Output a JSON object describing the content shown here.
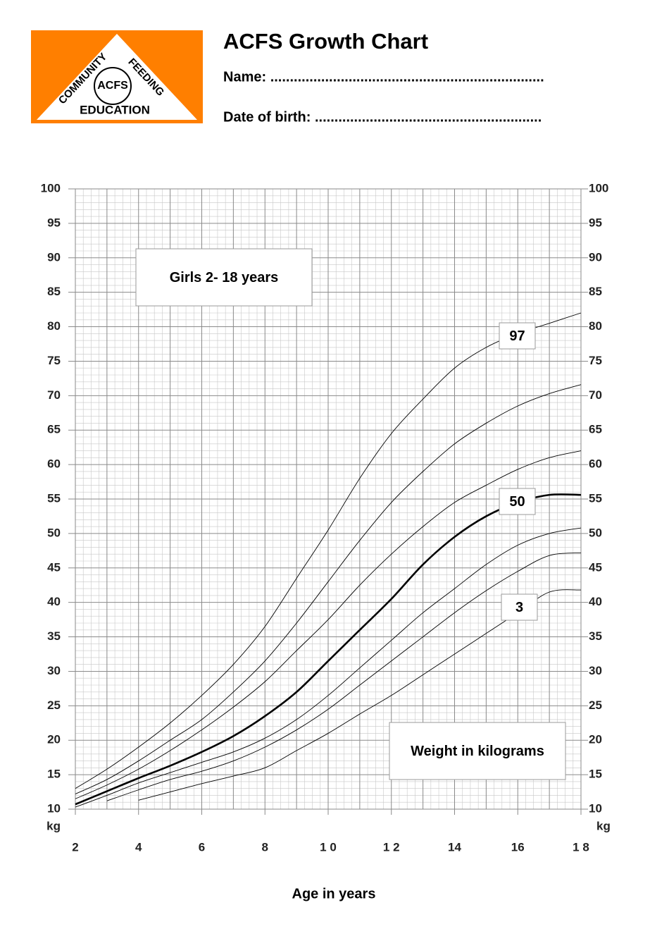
{
  "logo": {
    "top": "COMMUNITY",
    "right": "FEEDING",
    "bottom": "EDUCATION",
    "center": "ACFS"
  },
  "header": {
    "title": "ACFS Growth Chart",
    "name_field": "Name: ......................................................................",
    "dob_field": "Date of birth: .........................................................."
  },
  "chart_data": {
    "type": "line",
    "annotations": [
      "Girls 2- 18 years",
      "Weight in kilograms"
    ],
    "xlabel": "Age in years",
    "y_unit": "kg",
    "x": [
      2,
      3,
      4,
      5,
      6,
      7,
      8,
      9,
      10,
      11,
      12,
      13,
      14,
      15,
      16,
      17,
      18
    ],
    "xlim": [
      2,
      18
    ],
    "xticks": [
      2,
      4,
      6,
      8,
      {
        "value": 10,
        "label": "1 0"
      },
      {
        "value": 12,
        "label": "1 2"
      },
      14,
      16,
      {
        "value": 18,
        "label": "1 8"
      }
    ],
    "ylim": [
      10,
      100
    ],
    "yticks": [
      10,
      15,
      20,
      25,
      30,
      35,
      40,
      45,
      50,
      55,
      60,
      65,
      70,
      75,
      80,
      85,
      90,
      95,
      100
    ],
    "grid": true,
    "series": [
      {
        "name": "97",
        "color": "#000000",
        "linewidth": 0.9,
        "values": [
          13,
          15.8,
          19,
          22.5,
          26.5,
          31,
          36.5,
          43.5,
          50.5,
          58,
          64.5,
          69.5,
          74,
          77,
          79,
          80.5,
          82
        ]
      },
      {
        "name": null,
        "color": "#000000",
        "linewidth": 0.9,
        "values": [
          12.2,
          14.3,
          17,
          20,
          23,
          27,
          31.5,
          37,
          43,
          49,
          54.5,
          59,
          63,
          66,
          68.5,
          70.3,
          71.6
        ]
      },
      {
        "name": null,
        "color": "#000000",
        "linewidth": 0.9,
        "values": [
          11.5,
          13.5,
          15.8,
          18.5,
          21.5,
          24.8,
          28.5,
          33,
          37.5,
          42.5,
          47,
          51,
          54.5,
          57,
          59.3,
          61,
          62
        ]
      },
      {
        "name": "50",
        "color": "#000000",
        "linewidth": 2.6,
        "values": [
          10.7,
          12.6,
          14.5,
          16.3,
          18.3,
          20.6,
          23.5,
          27,
          31.5,
          36,
          40.5,
          45.5,
          49.5,
          52.5,
          54.5,
          55.6,
          55.6
        ]
      },
      {
        "name": null,
        "color": "#000000",
        "linewidth": 0.9,
        "values": [
          10.3,
          12,
          13.8,
          15.3,
          16.8,
          18.3,
          20.3,
          23,
          26.5,
          30.5,
          34.5,
          38.5,
          42,
          45.5,
          48.3,
          50,
          50.8
        ]
      },
      {
        "name": null,
        "color": "#000000",
        "linewidth": 0.9,
        "values": [
          null,
          11.2,
          12.8,
          14.3,
          15.5,
          17,
          19,
          21.5,
          24.5,
          28,
          31.5,
          35,
          38.5,
          41.7,
          44.5,
          46.8,
          47.2
        ]
      },
      {
        "name": "3",
        "color": "#000000",
        "linewidth": 0.9,
        "values": [
          null,
          null,
          11.3,
          12.5,
          13.7,
          14.8,
          16,
          18.5,
          21,
          23.8,
          26.5,
          29.5,
          32.5,
          35.5,
          38.5,
          41.5,
          41.8
        ]
      }
    ]
  }
}
